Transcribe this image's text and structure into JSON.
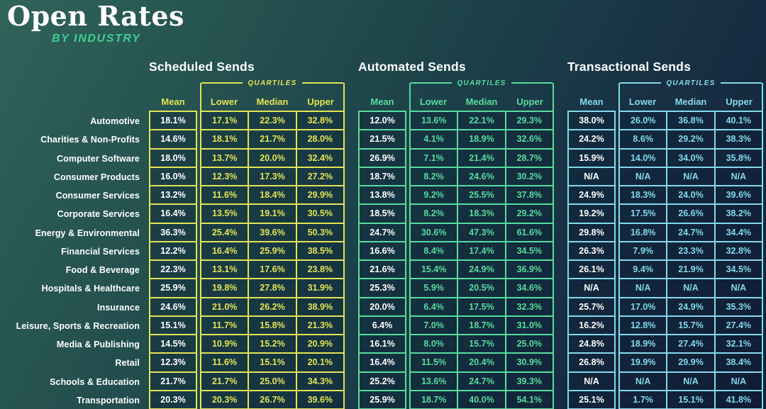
{
  "header": {
    "title": "Open Rates",
    "subtitle": "BY INDUSTRY"
  },
  "quartiles_label": "QUARTILES",
  "columns": [
    "Mean",
    "Lower",
    "Median",
    "Upper"
  ],
  "industries": [
    "Automotive",
    "Charities & Non-Profits",
    "Computer Software",
    "Consumer Products",
    "Consumer Services",
    "Corporate Services",
    "Energy & Environmental",
    "Financial Services",
    "Food & Beverage",
    "Hospitals & Healthcare",
    "Insurance",
    "Leisure, Sports & Recreation",
    "Media & Publishing",
    "Retail",
    "Schools & Education",
    "Transportation"
  ],
  "colors": {
    "background_top_left": "#30635a",
    "background_bottom_right": "#141f38",
    "cell_background": "rgba(8,22,48,0.30)",
    "text_white": "#ffffff",
    "subtitle_green": "#3ed08f",
    "accent_scheduled": "#e3e455",
    "accent_automated": "#58dc9d",
    "accent_transactional": "#85d9ec"
  },
  "chart_data": {
    "type": "table",
    "title": "Open Rates by Industry",
    "row_header": "Industry",
    "columns_per_group": [
      "Mean",
      "Lower quartile",
      "Median quartile",
      "Upper quartile"
    ],
    "groups": [
      {
        "name": "Scheduled Sends",
        "accent": "#e3e455",
        "rows": [
          [
            "18.1%",
            "17.1%",
            "22.3%",
            "32.8%"
          ],
          [
            "14.6%",
            "18.1%",
            "21.7%",
            "28.0%"
          ],
          [
            "18.0%",
            "13.7%",
            "20.0%",
            "32.4%"
          ],
          [
            "16.0%",
            "12.3%",
            "17.3%",
            "27.2%"
          ],
          [
            "13.2%",
            "11.6%",
            "18.4%",
            "29.9%"
          ],
          [
            "16.4%",
            "13.5%",
            "19.1%",
            "30.5%"
          ],
          [
            "36.3%",
            "25.4%",
            "39.6%",
            "50.3%"
          ],
          [
            "12.2%",
            "16.4%",
            "25.9%",
            "38.5%"
          ],
          [
            "22.3%",
            "13.1%",
            "17.6%",
            "23.8%"
          ],
          [
            "25.9%",
            "19.8%",
            "27.8%",
            "31.9%"
          ],
          [
            "24.6%",
            "21.0%",
            "26.2%",
            "38.9%"
          ],
          [
            "15.1%",
            "11.7%",
            "15.8%",
            "21.3%"
          ],
          [
            "14.5%",
            "10.9%",
            "15.2%",
            "20.9%"
          ],
          [
            "12.3%",
            "11.6%",
            "15.1%",
            "20.1%"
          ],
          [
            "21.7%",
            "21.7%",
            "25.0%",
            "34.3%"
          ],
          [
            "20.3%",
            "20.3%",
            "26.7%",
            "39.6%"
          ]
        ]
      },
      {
        "name": "Automated Sends",
        "accent": "#58dc9d",
        "rows": [
          [
            "12.0%",
            "13.6%",
            "22.1%",
            "29.3%"
          ],
          [
            "21.5%",
            "4.1%",
            "18.9%",
            "32.6%"
          ],
          [
            "26.9%",
            "7.1%",
            "21.4%",
            "28.7%"
          ],
          [
            "18.7%",
            "8.2%",
            "24.6%",
            "30.2%"
          ],
          [
            "13.8%",
            "9.2%",
            "25.5%",
            "37.8%"
          ],
          [
            "18.5%",
            "8.2%",
            "18.3%",
            "29.2%"
          ],
          [
            "24.7%",
            "30.6%",
            "47.3%",
            "61.6%"
          ],
          [
            "16.6%",
            "8.4%",
            "17.4%",
            "34.5%"
          ],
          [
            "21.6%",
            "15.4%",
            "24.9%",
            "36.9%"
          ],
          [
            "25.3%",
            "5.9%",
            "20.5%",
            "34.6%"
          ],
          [
            "20.0%",
            "6.4%",
            "17.5%",
            "32.3%"
          ],
          [
            "6.4%",
            "7.0%",
            "18.7%",
            "31.0%"
          ],
          [
            "16.1%",
            "8.0%",
            "15.7%",
            "25.0%"
          ],
          [
            "16.4%",
            "11.5%",
            "20.4%",
            "30.9%"
          ],
          [
            "25.2%",
            "13.6%",
            "24.7%",
            "39.3%"
          ],
          [
            "25.9%",
            "18.7%",
            "40.0%",
            "54.1%"
          ]
        ]
      },
      {
        "name": "Transactional Sends",
        "accent": "#85d9ec",
        "rows": [
          [
            "38.0%",
            "26.0%",
            "36.8%",
            "40.1%"
          ],
          [
            "24.2%",
            "8.6%",
            "29.2%",
            "38.3%"
          ],
          [
            "15.9%",
            "14.0%",
            "34.0%",
            "35.8%"
          ],
          [
            "N/A",
            "N/A",
            "N/A",
            "N/A"
          ],
          [
            "24.9%",
            "18.3%",
            "24.0%",
            "39.6%"
          ],
          [
            "19.2%",
            "17.5%",
            "26.6%",
            "38.2%"
          ],
          [
            "29.8%",
            "16.8%",
            "24.7%",
            "34.4%"
          ],
          [
            "26.3%",
            "7.9%",
            "23.3%",
            "32.8%"
          ],
          [
            "26.1%",
            "9.4%",
            "21.9%",
            "34.5%"
          ],
          [
            "N/A",
            "N/A",
            "N/A",
            "N/A"
          ],
          [
            "25.7%",
            "17.0%",
            "24.9%",
            "35.3%"
          ],
          [
            "16.2%",
            "12.8%",
            "15.7%",
            "27.4%"
          ],
          [
            "24.8%",
            "18.9%",
            "27.4%",
            "32.1%"
          ],
          [
            "26.8%",
            "19.9%",
            "29.9%",
            "38.4%"
          ],
          [
            "N/A",
            "N/A",
            "N/A",
            "N/A"
          ],
          [
            "25.1%",
            "1.7%",
            "15.1%",
            "41.8%"
          ]
        ]
      }
    ]
  }
}
